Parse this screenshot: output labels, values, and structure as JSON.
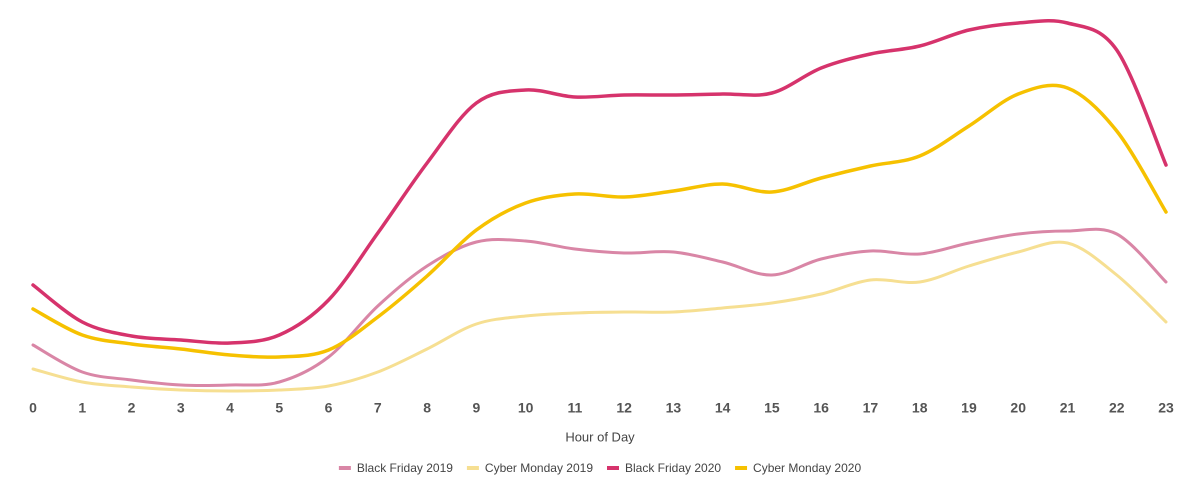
{
  "chart_data": {
    "type": "line",
    "x_label": "Hour of Day",
    "x": [
      0,
      1,
      2,
      3,
      4,
      5,
      6,
      7,
      8,
      9,
      10,
      11,
      12,
      13,
      14,
      15,
      16,
      17,
      18,
      19,
      20,
      21,
      22,
      23
    ],
    "xlim": [
      0,
      23
    ],
    "xticks": [
      0,
      1,
      2,
      3,
      4,
      5,
      6,
      7,
      8,
      9,
      10,
      11,
      12,
      13,
      14,
      15,
      16,
      17,
      18,
      19,
      20,
      21,
      22,
      23
    ],
    "ylim": [
      0,
      392
    ],
    "series": [
      {
        "name": "Black Friday 2019",
        "color": "#d986a6",
        "values": [
          47,
          20,
          12,
          7,
          7,
          10,
          35,
          86,
          126,
          150,
          151,
          143,
          139,
          140,
          130,
          117,
          133,
          141,
          138,
          149,
          158,
          161,
          158,
          110
        ]
      },
      {
        "name": "Cyber Monday 2019",
        "color": "#f6df92",
        "values": [
          23,
          10,
          5,
          2,
          1,
          2,
          6,
          20,
          43,
          68,
          76,
          79,
          80,
          80,
          84,
          89,
          98,
          112,
          110,
          126,
          140,
          149,
          117,
          70
        ]
      },
      {
        "name": "Black Friday 2020",
        "color": "#d6336c",
        "values": [
          107,
          70,
          56,
          52,
          49,
          57,
          92,
          159,
          229,
          289,
          302,
          295,
          297,
          297,
          298,
          299,
          324,
          338,
          346,
          362,
          369,
          369,
          342,
          227
        ]
      },
      {
        "name": "Cyber Monday 2020",
        "color": "#f6c100",
        "values": [
          83,
          57,
          48,
          43,
          37,
          35,
          42,
          75,
          116,
          162,
          189,
          198,
          195,
          201,
          208,
          200,
          214,
          226,
          236,
          266,
          298,
          304,
          261,
          180
        ]
      }
    ],
    "legend": "bottom"
  }
}
